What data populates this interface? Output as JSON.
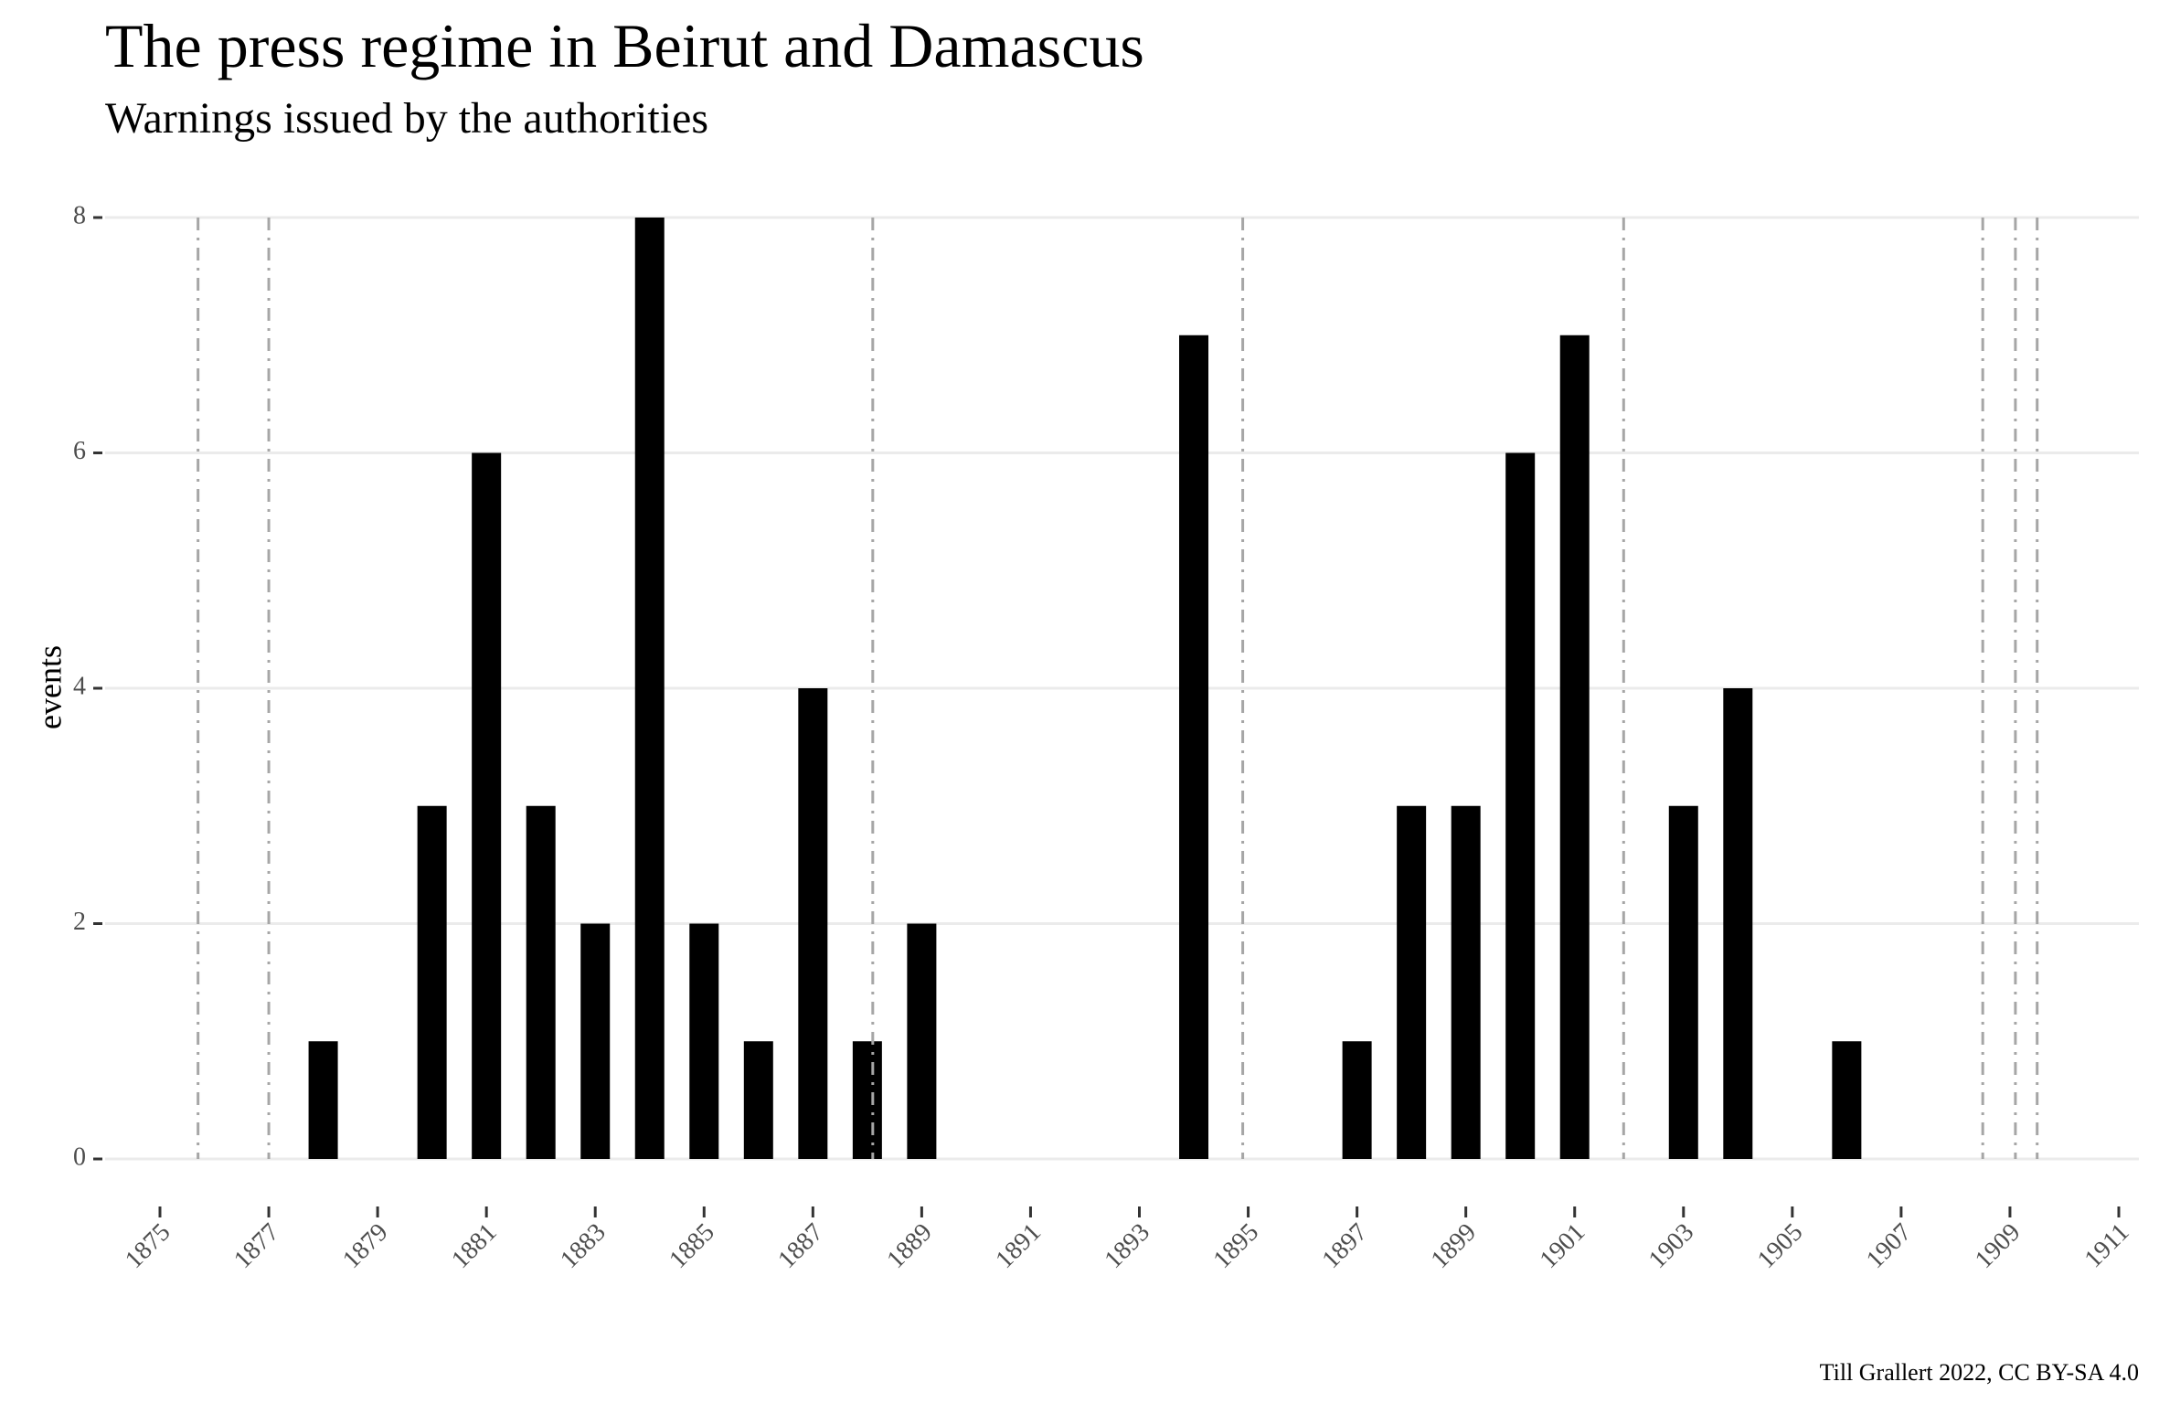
{
  "chart_data": {
    "type": "bar",
    "title": "The press regime in Beirut and Damascus",
    "subtitle": "Warnings issued by the authorities",
    "xlabel": "",
    "ylabel": "events",
    "caption": "Till Grallert 2022, CC BY-SA 4.0",
    "x": [
      1878,
      1880,
      1881,
      1882,
      1883,
      1884,
      1885,
      1886,
      1887,
      1888,
      1889,
      1894,
      1897,
      1898,
      1899,
      1900,
      1901,
      1903,
      1904,
      1906
    ],
    "values": [
      1,
      3,
      6,
      3,
      2,
      8,
      2,
      1,
      4,
      1,
      2,
      7,
      1,
      3,
      3,
      6,
      7,
      3,
      4,
      1
    ],
    "xlim": [
      1875,
      1911
    ],
    "ylim": [
      0,
      8
    ],
    "x_ticks": [
      "1875",
      "1877",
      "1879",
      "1881",
      "1883",
      "1885",
      "1887",
      "1889",
      "1891",
      "1893",
      "1895",
      "1897",
      "1899",
      "1901",
      "1903",
      "1905",
      "1907",
      "1909",
      "1911"
    ],
    "y_ticks": [
      "0",
      "2",
      "4",
      "6",
      "8"
    ],
    "reference_lines": [
      1875.7,
      1877.0,
      1888.1,
      1894.9,
      1901.9,
      1908.5,
      1909.1,
      1909.5
    ],
    "bar_color": "#000000",
    "reference_line_color": "#a6a6a6",
    "grid": "horizontal"
  }
}
